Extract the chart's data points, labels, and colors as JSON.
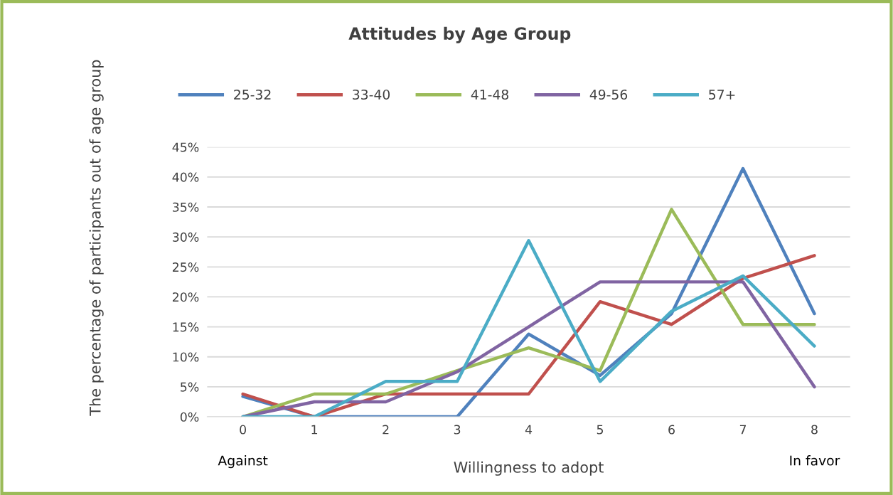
{
  "chart_data": {
    "type": "line",
    "title": "Attitudes by Age Group",
    "xlabel": "Willingness to adopt",
    "ylabel": "The percentage of participants out of age group",
    "x": [
      0,
      1,
      2,
      3,
      4,
      5,
      6,
      7,
      8
    ],
    "xlim": [
      -0.5,
      8.5
    ],
    "xticks": [
      0,
      1,
      2,
      3,
      4,
      5,
      6,
      7,
      8
    ],
    "ylim": [
      0,
      45
    ],
    "yticks": [
      {
        "value": 0,
        "label": "0%"
      },
      {
        "value": 5,
        "label": "5%"
      },
      {
        "value": 10,
        "label": "10%"
      },
      {
        "value": 15,
        "label": "15%"
      },
      {
        "value": 20,
        "label": "20%"
      },
      {
        "value": 25,
        "label": "25%"
      },
      {
        "value": 30,
        "label": "30%"
      },
      {
        "value": 35,
        "label": "35%"
      },
      {
        "value": 40,
        "label": "40%"
      },
      {
        "value": 45,
        "label": "45%"
      }
    ],
    "grid": "y",
    "legend": "top",
    "marker": "none",
    "line_style": "solid",
    "annotations": [
      "Against",
      "In favor"
    ],
    "series": [
      {
        "name": "25-32",
        "color": "#4f81bd",
        "values": [
          3.4,
          0,
          0,
          0,
          13.8,
          6.9,
          17.2,
          41.4,
          17.2
        ]
      },
      {
        "name": "33-40",
        "color": "#c0504d",
        "values": [
          3.8,
          0,
          3.8,
          3.8,
          3.8,
          19.2,
          15.4,
          23.1,
          26.9
        ]
      },
      {
        "name": "41-48",
        "color": "#9bbb59",
        "values": [
          0,
          3.8,
          3.8,
          7.7,
          11.5,
          7.7,
          34.6,
          15.4,
          15.4
        ]
      },
      {
        "name": "49-56",
        "color": "#8064a2",
        "values": [
          0,
          2.5,
          2.5,
          7.5,
          15,
          22.5,
          22.5,
          22.5,
          5
        ]
      },
      {
        "name": "57+",
        "color": "#4bacc6",
        "values": [
          0,
          0,
          5.9,
          5.9,
          29.4,
          5.9,
          17.6,
          23.5,
          11.8
        ]
      }
    ]
  }
}
